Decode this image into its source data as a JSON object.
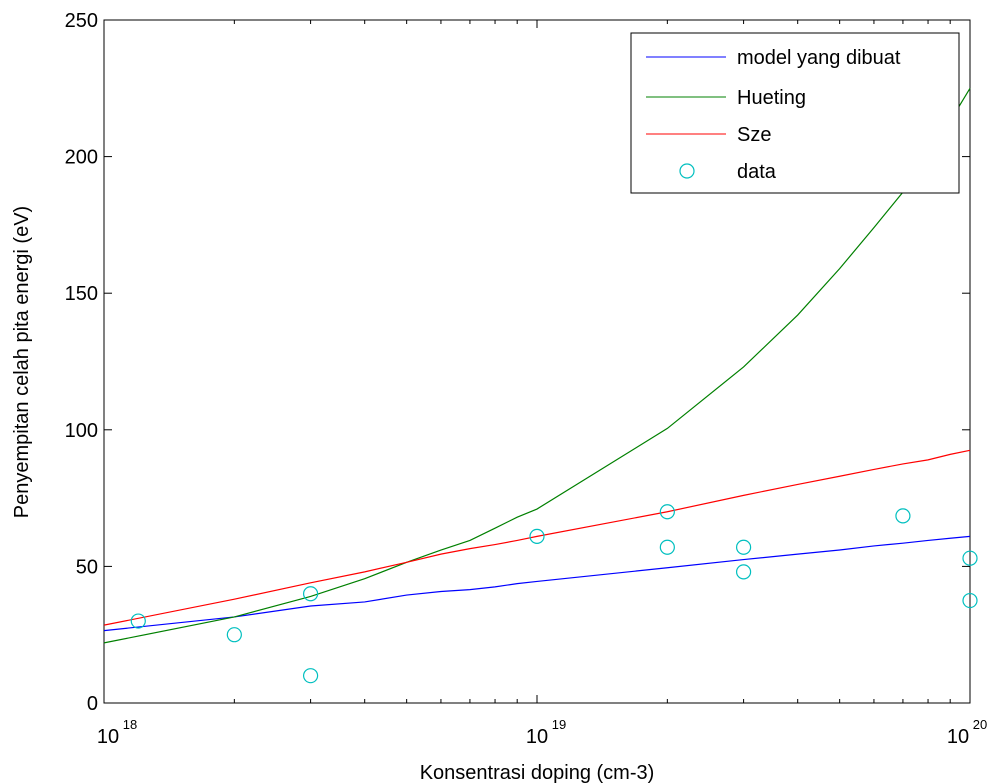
{
  "chart_data": {
    "type": "line",
    "title": "",
    "xlabel": "Konsentrasi doping (cm-3)",
    "ylabel": "Penyempitan celah pita energi (eV)",
    "xscale": "log",
    "xlim": [
      1e+18,
      1e+20
    ],
    "ylim": [
      0,
      250
    ],
    "x_ticks": [
      {
        "value": 1e+18,
        "base": "10",
        "exp": "18"
      },
      {
        "value": 1e+19,
        "base": "10",
        "exp": "19"
      },
      {
        "value": 1e+20,
        "base": "10",
        "exp": "20"
      }
    ],
    "y_ticks": [
      0,
      50,
      100,
      150,
      200,
      250
    ],
    "y_tick_labels": [
      "0",
      "50",
      "100",
      "150",
      "200",
      "250"
    ],
    "grid": false,
    "legend_position": "top-right",
    "series": [
      {
        "name": "model yang dibuat",
        "style": "line",
        "color": "#0000ff",
        "x": [
          1e+18,
          2e+18,
          3e+18,
          4e+18,
          5e+18,
          6e+18,
          7e+18,
          8e+18,
          9e+18,
          1e+19,
          2e+19,
          3e+19,
          4e+19,
          5e+19,
          6e+19,
          7e+19,
          8e+19,
          9e+19,
          1e+20
        ],
        "y": [
          26.5,
          31.5,
          35.5,
          37,
          39.5,
          40.8,
          41.5,
          42.5,
          43.7,
          44.5,
          49.5,
          52.5,
          54.5,
          56,
          57.5,
          58.5,
          59.5,
          60.3,
          61
        ]
      },
      {
        "name": "Hueting",
        "style": "line",
        "color": "#008000",
        "x": [
          1e+18,
          2e+18,
          3e+18,
          4e+18,
          5e+18,
          6e+18,
          7e+18,
          8e+18,
          9e+18,
          1e+19,
          2e+19,
          3e+19,
          4e+19,
          5e+19,
          6e+19,
          7e+19,
          8e+19,
          9e+19,
          1e+20
        ],
        "y": [
          22,
          31.5,
          39,
          45.5,
          51.5,
          56,
          59.5,
          64,
          68,
          71,
          100.5,
          123,
          142,
          159,
          174,
          187,
          200,
          213,
          225
        ]
      },
      {
        "name": "Sze",
        "style": "line",
        "color": "#ff0000",
        "x": [
          1e+18,
          2e+18,
          3e+18,
          4e+18,
          5e+18,
          6e+18,
          7e+18,
          8e+18,
          9e+18,
          1e+19,
          2e+19,
          3e+19,
          4e+19,
          5e+19,
          6e+19,
          7e+19,
          8e+19,
          9e+19,
          1e+20
        ],
        "y": [
          28.5,
          38,
          44,
          48,
          51.5,
          54.5,
          56.5,
          58,
          59.5,
          61,
          70,
          76,
          80,
          83,
          85.5,
          87.5,
          89,
          91,
          92.5
        ]
      },
      {
        "name": "data",
        "style": "markers",
        "color": "#00bfbf",
        "x": [
          1.2e+18,
          2e+18,
          3e+18,
          3e+18,
          1e+19,
          2e+19,
          2e+19,
          3e+19,
          3e+19,
          7e+19,
          1e+20,
          1e+20
        ],
        "y": [
          30,
          25,
          40,
          10,
          61,
          70,
          57,
          57,
          48,
          68.5,
          53,
          37.5
        ]
      }
    ]
  }
}
